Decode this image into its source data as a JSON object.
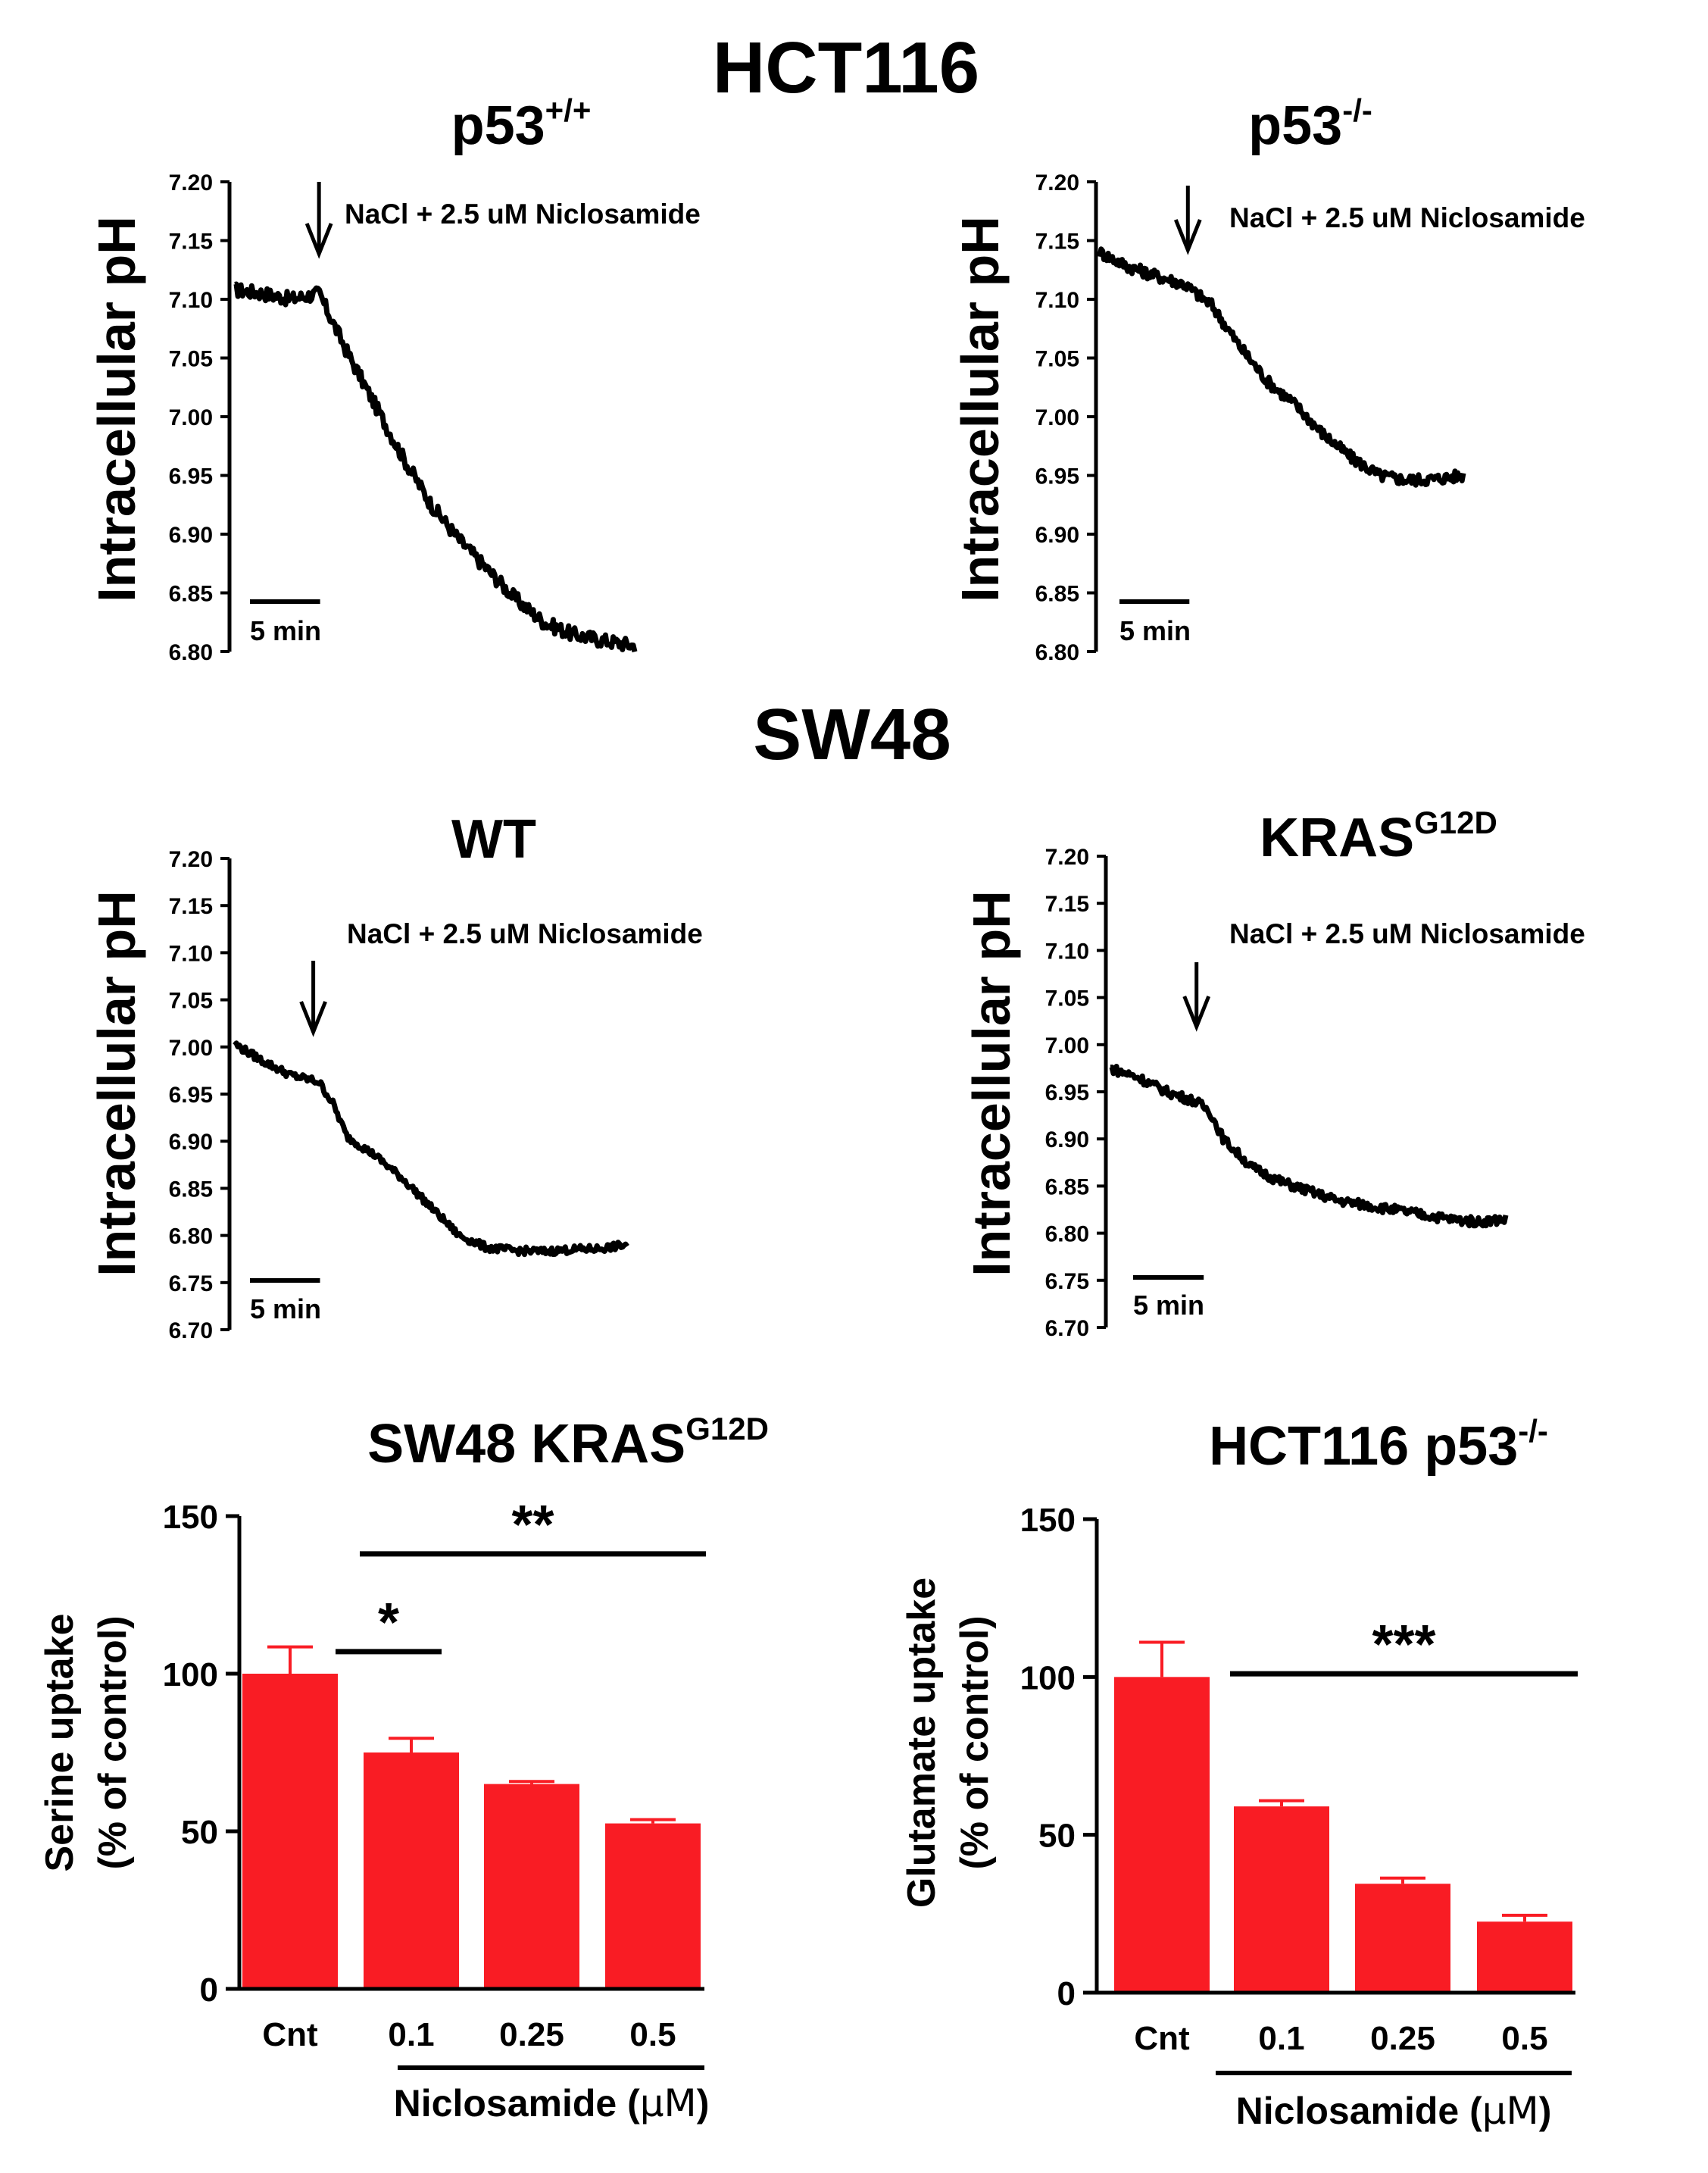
{
  "sections": {
    "hct116": "HCT116",
    "sw48": "SW48"
  },
  "scale_bar_label": "5 min",
  "treatment_label": "NaCl + 2.5 uM Niclosamide",
  "ph_ylabel": "Intracellular pH",
  "niclosamide_label": "Niclosamide (",
  "niclosamide_unit": "μM",
  "niclosamide_close": ")",
  "chart_data": [
    {
      "id": "hct-p53wt",
      "type": "line",
      "title": "p53",
      "title_sup": "+/+",
      "ylabel": "Intracellular pH",
      "ylim": [
        6.8,
        7.2
      ],
      "yticks": [
        "7.20",
        "7.15",
        "7.10",
        "7.05",
        "7.00",
        "6.95",
        "6.90",
        "6.85",
        "6.80"
      ],
      "x_unit": "min",
      "xlim": [
        0,
        28.5
      ],
      "scale_bar_minutes": 5,
      "annotation_label": "NaCl + 2.5 uM Niclosamide",
      "annotation_x": 6,
      "series": [
        {
          "x": [
            0,
            2,
            4,
            6,
            8,
            10,
            12,
            14,
            16,
            18,
            20,
            22,
            24,
            26,
            28.5
          ],
          "y": [
            7.108,
            7.105,
            7.1,
            7.105,
            7.055,
            7.01,
            6.965,
            6.925,
            6.895,
            6.87,
            6.845,
            6.825,
            6.815,
            6.81,
            6.805
          ]
        }
      ]
    },
    {
      "id": "hct-p53ko",
      "type": "line",
      "title": "p53",
      "title_sup": "-/-",
      "ylabel": "Intracellular pH",
      "ylim": [
        6.8,
        7.2
      ],
      "yticks": [
        "7.20",
        "7.15",
        "7.10",
        "7.05",
        "7.00",
        "6.95",
        "6.90",
        "6.85",
        "6.80"
      ],
      "x_unit": "min",
      "xlim": [
        0,
        26
      ],
      "scale_bar_minutes": 5,
      "annotation_label": "NaCl + 2.5 uM Niclosamide",
      "annotation_x": 6.3,
      "series": [
        {
          "x": [
            0,
            2,
            4,
            6,
            8,
            10,
            12,
            14,
            16,
            18,
            20,
            22,
            24,
            26
          ],
          "y": [
            7.14,
            7.128,
            7.12,
            7.113,
            7.095,
            7.06,
            7.03,
            7.01,
            6.985,
            6.965,
            6.95,
            6.946,
            6.947,
            6.95
          ]
        }
      ]
    },
    {
      "id": "sw48-wt",
      "type": "line",
      "title": "WT",
      "ylabel": "Intracellular pH",
      "ylim": [
        6.7,
        7.2
      ],
      "yticks": [
        "7.20",
        "7.15",
        "7.10",
        "7.05",
        "7.00",
        "6.95",
        "6.90",
        "6.85",
        "6.80",
        "6.75",
        "6.70"
      ],
      "x_unit": "min",
      "xlim": [
        0,
        28
      ],
      "scale_bar_minutes": 5,
      "annotation_label": "NaCl + 2.5 uM Niclosamide",
      "annotation_x": 5.6,
      "series": [
        {
          "x": [
            0,
            2,
            4,
            6,
            7,
            8,
            10,
            12,
            14,
            16,
            18,
            20,
            22,
            24,
            26,
            28
          ],
          "y": [
            7.003,
            6.985,
            6.97,
            6.963,
            6.94,
            6.905,
            6.885,
            6.86,
            6.83,
            6.8,
            6.787,
            6.784,
            6.783,
            6.785,
            6.786,
            6.79
          ]
        }
      ]
    },
    {
      "id": "sw48-kras",
      "type": "line",
      "title": "KRAS",
      "title_sup": "G12D",
      "ylabel": "Intracellular pH",
      "ylim": [
        6.7,
        7.2
      ],
      "yticks": [
        "7.20",
        "7.15",
        "7.10",
        "7.05",
        "7.00",
        "6.95",
        "6.90",
        "6.85",
        "6.80",
        "6.75",
        "6.70"
      ],
      "x_unit": "min",
      "xlim": [
        0,
        28
      ],
      "scale_bar_minutes": 5,
      "annotation_label": "NaCl + 2.5 uM Niclosamide",
      "annotation_x": 6.1,
      "series": [
        {
          "x": [
            0,
            2,
            4,
            6,
            7,
            8,
            10,
            12,
            14,
            16,
            18,
            20,
            22,
            24,
            26,
            28
          ],
          "y": [
            6.975,
            6.965,
            6.95,
            6.94,
            6.93,
            6.9,
            6.87,
            6.855,
            6.845,
            6.835,
            6.83,
            6.825,
            6.82,
            6.815,
            6.812,
            6.815
          ]
        }
      ]
    },
    {
      "id": "bar-serine",
      "type": "bar",
      "title": "SW48 KRAS",
      "title_sup": "G12D",
      "ylabel_line1": "Serine uptake",
      "ylabel_line2": "(% of control)",
      "ylim": [
        0,
        150
      ],
      "yticks": [
        0,
        50,
        100,
        150
      ],
      "categories": [
        "Cnt",
        "0.1",
        "0.25",
        "0.5"
      ],
      "values": [
        100,
        75,
        65,
        52.5
      ],
      "errors": [
        8.5,
        4.5,
        0.8,
        1.2
      ],
      "xlabel": "Niclosamide (μM)",
      "significance": [
        {
          "label": "*",
          "from": 0,
          "to": 1,
          "y": 107
        },
        {
          "label": "**",
          "from": 1,
          "to": 3,
          "y": 138
        }
      ]
    },
    {
      "id": "bar-glutamate",
      "type": "bar",
      "title": "HCT116 p53",
      "title_sup": "-/-",
      "ylabel_line1": "Glutamate uptake",
      "ylabel_line2": "(% of control)",
      "ylim": [
        0,
        150
      ],
      "yticks": [
        0,
        50,
        100,
        150
      ],
      "categories": [
        "Cnt",
        "0.1",
        "0.25",
        "0.5"
      ],
      "values": [
        100,
        59,
        34.5,
        22.5
      ],
      "errors": [
        11,
        1.8,
        1.8,
        2
      ],
      "xlabel": "Niclosamide (μM)",
      "significance": [
        {
          "label": "***",
          "from": 1,
          "to": 3,
          "y": 101
        }
      ]
    }
  ],
  "colors": {
    "bar_fill": "#f91c24",
    "trace": "#000000",
    "axis": "#000000"
  }
}
